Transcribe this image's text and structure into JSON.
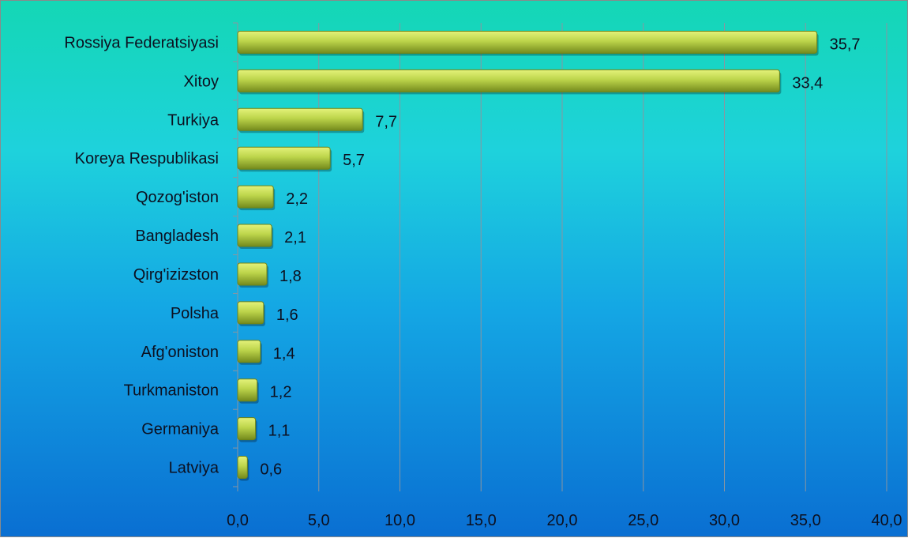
{
  "chart_data": {
    "type": "bar",
    "orientation": "horizontal",
    "categories": [
      "Rossiya Federatsiyasi",
      "Xitoy",
      "Turkiya",
      "Koreya Respublikasi",
      "Qozog'iston",
      "Bangladesh",
      "Qirg'izizston",
      "Polsha",
      "Afg'oniston",
      "Turkmaniston",
      "Germaniya",
      "Latviya"
    ],
    "values": [
      35.7,
      33.4,
      7.7,
      5.7,
      2.2,
      2.1,
      1.8,
      1.6,
      1.4,
      1.2,
      1.1,
      0.6
    ],
    "value_labels": [
      "35,7",
      "33,4",
      "7,7",
      "5,7",
      "2,2",
      "2,1",
      "1,8",
      "1,6",
      "1,4",
      "1,2",
      "1,1",
      "0,6"
    ],
    "x_ticks": [
      "0,0",
      "5,0",
      "10,0",
      "15,0",
      "20,0",
      "25,0",
      "30,0",
      "35,0",
      "40,0"
    ],
    "xlim": [
      0,
      40
    ],
    "grid": "vertical",
    "title": "",
    "xlabel": "",
    "ylabel": "",
    "colors": {
      "bar": "#a9c43c",
      "bar_light": "#e4f27a",
      "bar_dark": "#6e8418",
      "background_top": "#14d7b5",
      "background_bottom": "#0a6fd2"
    }
  }
}
